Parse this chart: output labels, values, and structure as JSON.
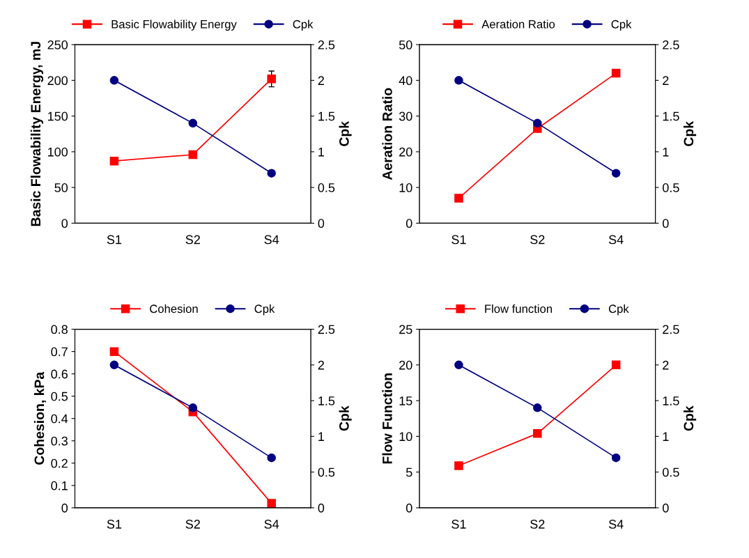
{
  "chart_data": [
    {
      "type": "line",
      "ylabel": "Basic Flowability Energy, mJ",
      "y2label": "Cpk",
      "categories": [
        "S1",
        "S2",
        "S4"
      ],
      "ylim": [
        0,
        250
      ],
      "yticks": [
        0,
        50,
        100,
        150,
        200,
        250
      ],
      "y2lim": [
        0,
        2.5
      ],
      "y2ticks": [
        0,
        0.5,
        1,
        1.5,
        2,
        2.5
      ],
      "legend": "top",
      "grid": false,
      "series": [
        {
          "name": "Basic Flowability Energy",
          "color": "#ff0000",
          "marker": "square",
          "values": [
            87,
            96,
            202
          ],
          "errors": [
            null,
            null,
            11
          ]
        },
        {
          "name": "Cpk",
          "color": "#000080",
          "marker": "circle",
          "axis": "y2",
          "values": [
            2,
            1.4,
            0.7
          ]
        }
      ]
    },
    {
      "type": "line",
      "ylabel": "Aeration Ratio",
      "y2label": "Cpk",
      "categories": [
        "S1",
        "S2",
        "S4"
      ],
      "ylim": [
        0,
        50
      ],
      "yticks": [
        0,
        10,
        20,
        30,
        40,
        50
      ],
      "y2lim": [
        0,
        2.5
      ],
      "y2ticks": [
        0,
        0.5,
        1,
        1.5,
        2,
        2.5
      ],
      "legend": "top",
      "grid": false,
      "series": [
        {
          "name": "Aeration Ratio",
          "color": "#ff0000",
          "marker": "square",
          "values": [
            7,
            26.5,
            42
          ]
        },
        {
          "name": "Cpk",
          "color": "#000080",
          "marker": "circle",
          "axis": "y2",
          "values": [
            2,
            1.4,
            0.7
          ]
        }
      ]
    },
    {
      "type": "line",
      "ylabel": "Cohesion, kPa",
      "y2label": "Cpk",
      "categories": [
        "S1",
        "S2",
        "S4"
      ],
      "ylim": [
        0,
        0.8
      ],
      "yticks": [
        0,
        0.1,
        0.2,
        0.3,
        0.4,
        0.5,
        0.6,
        0.7,
        0.8
      ],
      "y2lim": [
        0,
        2.5
      ],
      "y2ticks": [
        0,
        0.5,
        1,
        1.5,
        2,
        2.5
      ],
      "legend": "top",
      "grid": false,
      "series": [
        {
          "name": "Cohesion",
          "color": "#ff0000",
          "marker": "square",
          "values": [
            0.7,
            0.43,
            0.02
          ]
        },
        {
          "name": "Cpk",
          "color": "#000080",
          "marker": "circle",
          "axis": "y2",
          "values": [
            2,
            1.4,
            0.7
          ]
        }
      ]
    },
    {
      "type": "line",
      "ylabel": "Flow Function",
      "y2label": "Cpk",
      "categories": [
        "S1",
        "S2",
        "S4"
      ],
      "ylim": [
        0,
        25
      ],
      "yticks": [
        0,
        5,
        10,
        15,
        20,
        25
      ],
      "y2lim": [
        0,
        2.5
      ],
      "y2ticks": [
        0,
        0.5,
        1,
        1.5,
        2,
        2.5
      ],
      "legend": "top",
      "grid": false,
      "series": [
        {
          "name": "Flow function",
          "color": "#ff0000",
          "marker": "square",
          "values": [
            5.9,
            10.4,
            20
          ]
        },
        {
          "name": "Cpk",
          "color": "#000080",
          "marker": "circle",
          "axis": "y2",
          "values": [
            2,
            1.4,
            0.7
          ]
        }
      ]
    }
  ]
}
